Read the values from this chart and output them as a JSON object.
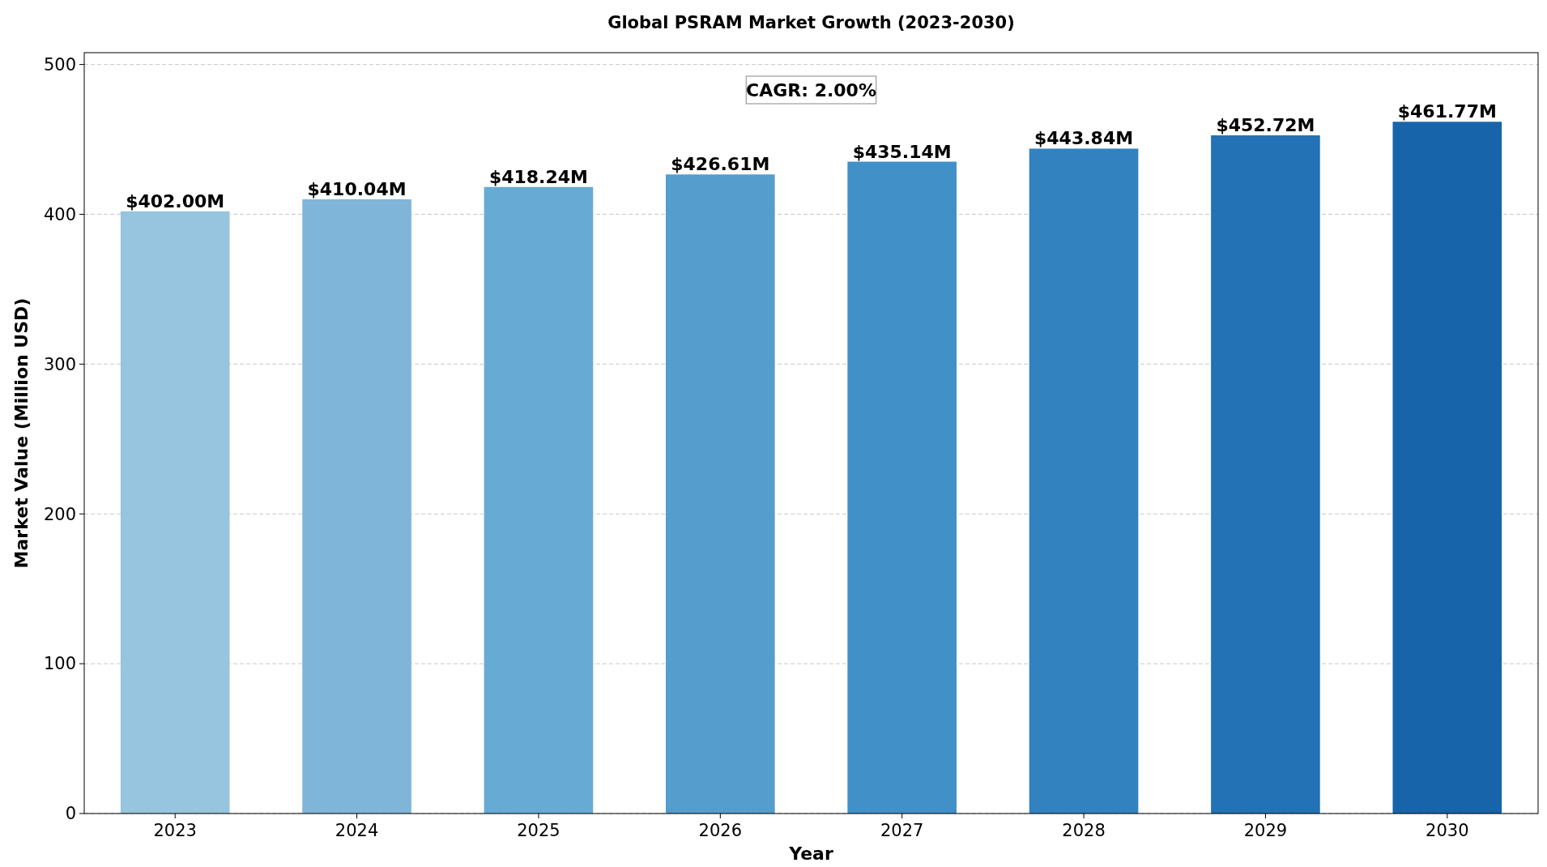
{
  "chart_data": {
    "type": "bar",
    "title": "Global PSRAM Market Growth (2023-2030)",
    "xlabel": "Year",
    "ylabel": "Market Value (Million USD)",
    "categories": [
      "2023",
      "2024",
      "2025",
      "2026",
      "2027",
      "2028",
      "2029",
      "2030"
    ],
    "values": [
      402.0,
      410.04,
      418.24,
      426.61,
      435.14,
      443.84,
      452.72,
      461.77
    ],
    "colors": [
      "#97c4df",
      "#7fb5d8",
      "#67abd4",
      "#549dcc",
      "#4190c8",
      "#3282bf",
      "#2272b5",
      "#1764aa"
    ],
    "value_labels": [
      "$402.00M",
      "$410.04M",
      "$418.24M",
      "$426.61M",
      "$435.14M",
      "$443.84M",
      "$452.72M",
      "$461.77M"
    ],
    "ylim": [
      0,
      507.9
    ],
    "yticks": [
      0,
      100,
      200,
      300,
      400,
      500
    ],
    "grid": "y",
    "annotations": [
      "CAGR: 2.00%"
    ]
  }
}
